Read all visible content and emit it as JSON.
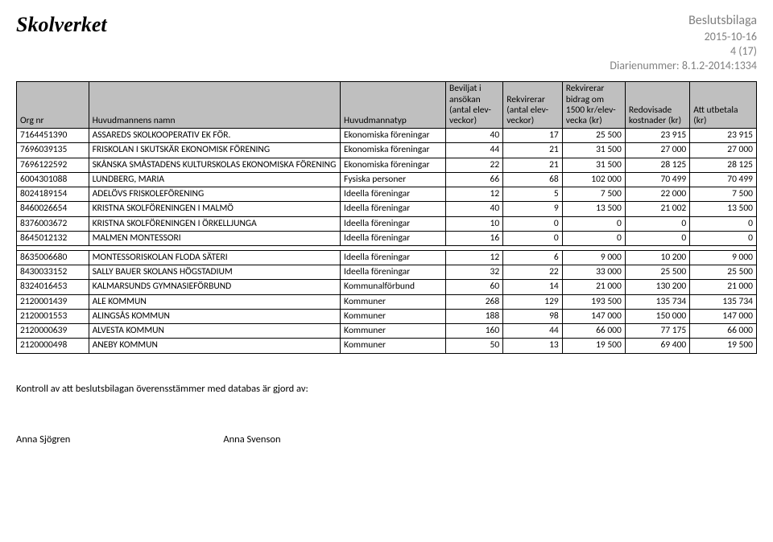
{
  "header": {
    "logo": "Skolverket",
    "meta_title": "Beslutsbilaga",
    "date": "2015-10-16",
    "page": "4 (17)",
    "diar_label": "Diarienummer:",
    "diar_value": "8.1.2-2014:1334"
  },
  "columns": [
    "Org nr",
    "Huvudmannens namn",
    "Huvudmannatyp",
    "Beviljat i ansökan (antal elev-veckor)",
    "Rekvirerar (antal elev-veckor)",
    "Rekvirerar bidrag om 1500 kr/elev-vecka (kr)",
    "Redovisade kostnader (kr)",
    "Att utbetala (kr)"
  ],
  "block1": [
    {
      "org": "7164451390",
      "name": "ASSAREDS SKOLKOOPERATIV EK FÖR.",
      "type": "Ekonomiska föreningar",
      "v": [
        "40",
        "17",
        "25 500",
        "23 915",
        "23 915"
      ]
    },
    {
      "org": "7696039135",
      "name": "FRISKOLAN I SKUTSKÄR EKONOMISK FÖRENING",
      "type": "Ekonomiska föreningar",
      "v": [
        "44",
        "21",
        "31 500",
        "27 000",
        "27 000"
      ]
    },
    {
      "org": "7696122592",
      "name": "SKÅNSKA SMÅSTADENS KULTURSKOLAS EKONOMISKA FÖRENING",
      "type": "Ekonomiska föreningar",
      "v": [
        "22",
        "21",
        "31 500",
        "28 125",
        "28 125"
      ]
    },
    {
      "org": "6004301088",
      "name": "LUNDBERG, MARIA",
      "type": "Fysiska personer",
      "v": [
        "66",
        "68",
        "102 000",
        "70 499",
        "70 499"
      ]
    },
    {
      "org": "8024189154",
      "name": "ADELÖVS FRISKOLEFÖRENING",
      "type": "Ideella föreningar",
      "v": [
        "12",
        "5",
        "7 500",
        "22 000",
        "7 500"
      ]
    },
    {
      "org": "8460026654",
      "name": "KRISTNA SKOLFÖRENINGEN I MALMÖ",
      "type": "Ideella föreningar",
      "v": [
        "40",
        "9",
        "13 500",
        "21 002",
        "13 500"
      ]
    },
    {
      "org": "8376003672",
      "name": "KRISTNA SKOLFÖRENINGEN I ÖRKELLJUNGA",
      "type": "Ideella föreningar",
      "v": [
        "10",
        "0",
        "0",
        "0",
        "0"
      ]
    },
    {
      "org": "8645012132",
      "name": "MALMEN MONTESSORI",
      "type": "Ideella föreningar",
      "v": [
        "16",
        "0",
        "0",
        "0",
        "0"
      ]
    }
  ],
  "block2": [
    {
      "org": "8635006680",
      "name": "MONTESSORISKOLAN FLODA SÄTERI",
      "type": "Ideella föreningar",
      "v": [
        "12",
        "6",
        "9 000",
        "10 200",
        "9 000"
      ]
    },
    {
      "org": "8430033152",
      "name": "SALLY BAUER SKOLANS HÖGSTADIUM",
      "type": "Ideella föreningar",
      "v": [
        "32",
        "22",
        "33 000",
        "25 500",
        "25 500"
      ]
    },
    {
      "org": "8324016453",
      "name": "KALMARSUNDS GYMNASIEFÖRBUND",
      "type": "Kommunalförbund",
      "v": [
        "60",
        "14",
        "21 000",
        "130 200",
        "21 000"
      ]
    },
    {
      "org": "2120001439",
      "name": "ALE KOMMUN",
      "type": "Kommuner",
      "v": [
        "268",
        "129",
        "193 500",
        "135 734",
        "135 734"
      ]
    },
    {
      "org": "2120001553",
      "name": "ALINGSÅS KOMMUN",
      "type": "Kommuner",
      "v": [
        "188",
        "98",
        "147 000",
        "150 000",
        "147 000"
      ]
    },
    {
      "org": "2120000639",
      "name": "ALVESTA KOMMUN",
      "type": "Kommuner",
      "v": [
        "160",
        "44",
        "66 000",
        "77 175",
        "66 000"
      ]
    },
    {
      "org": "2120000498",
      "name": "ANEBY KOMMUN",
      "type": "Kommuner",
      "v": [
        "50",
        "13",
        "19 500",
        "69 400",
        "19 500"
      ]
    }
  ],
  "footer": {
    "note": "Kontroll av att beslutsbilagan överensstämmer med databas är gjord av:",
    "sig1": "Anna Sjögren",
    "sig2": "Anna Svenson"
  }
}
